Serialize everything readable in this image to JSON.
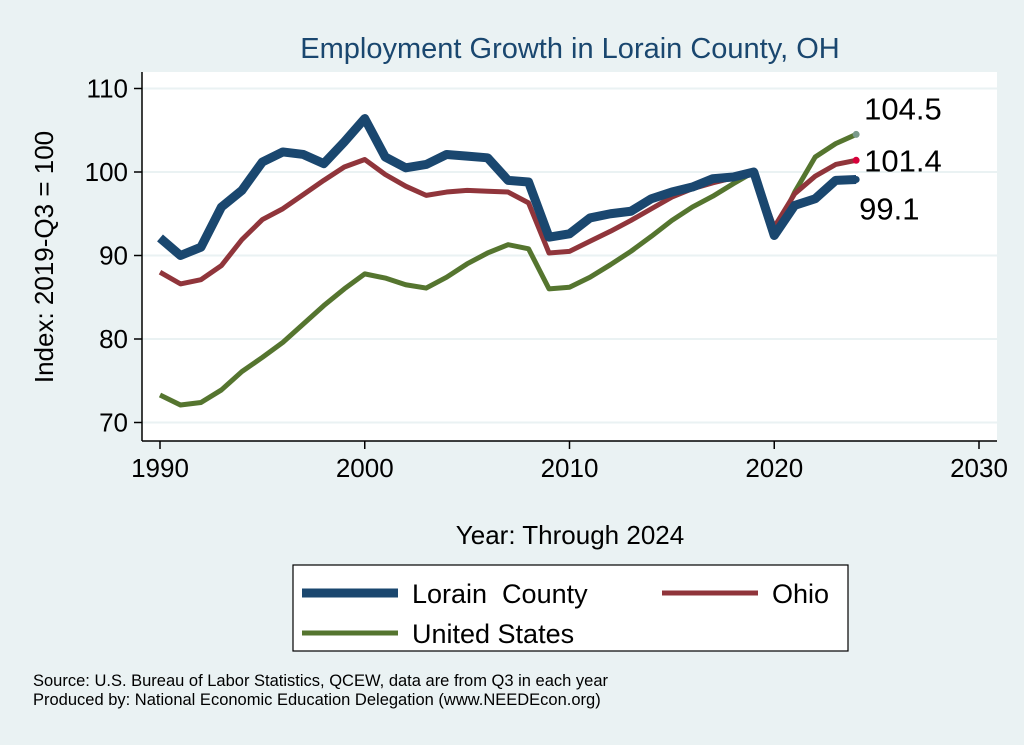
{
  "chart_data": {
    "type": "line",
    "title": "Employment Growth in Lorain County, OH",
    "xlabel": "Year: Through 2024",
    "ylabel": "Index: 2019-Q3 = 100",
    "xlim": [
      1990,
      2030
    ],
    "ylim": [
      70,
      110
    ],
    "xticks": [
      1990,
      2000,
      2010,
      2020,
      2030
    ],
    "yticks": [
      70,
      80,
      90,
      100,
      110
    ],
    "grid": true,
    "legend_position": "bottom",
    "x": [
      1990,
      1991,
      1992,
      1993,
      1994,
      1995,
      1996,
      1997,
      1998,
      1999,
      2000,
      2001,
      2002,
      2003,
      2004,
      2005,
      2006,
      2007,
      2008,
      2009,
      2010,
      2011,
      2012,
      2013,
      2014,
      2015,
      2016,
      2017,
      2018,
      2019,
      2020,
      2021,
      2022,
      2023,
      2024
    ],
    "series": [
      {
        "name": "Lorain  County",
        "color": "#1a476f",
        "values": [
          92.1,
          90,
          91,
          95.8,
          97.8,
          101.2,
          102.4,
          102.1,
          101,
          103.6,
          106.4,
          101.8,
          100.5,
          100.9,
          102.1,
          101.9,
          101.7,
          99,
          98.8,
          92.2,
          92.6,
          94.5,
          95,
          95.3,
          96.8,
          97.6,
          98.2,
          99.2,
          99.4,
          100,
          92.4,
          96,
          96.8,
          99,
          99.1
        ],
        "end_label": "99.1",
        "end_color": "#1a476f"
      },
      {
        "name": "Ohio",
        "color": "#90353b",
        "values": [
          88,
          86.6,
          87.1,
          88.8,
          91.9,
          94.3,
          95.6,
          97.3,
          99,
          100.6,
          101.5,
          99.7,
          98.3,
          97.2,
          97.6,
          97.8,
          97.7,
          97.6,
          96.3,
          90.3,
          90.5,
          91.7,
          92.9,
          94.2,
          95.6,
          97,
          98,
          98.7,
          99.3,
          100,
          93.4,
          97.4,
          99.5,
          100.9,
          101.4
        ],
        "end_label": "101.4",
        "end_color": "#d7003a"
      },
      {
        "name": "United States",
        "color": "#55752f",
        "values": [
          73.3,
          72.1,
          72.4,
          73.9,
          76.1,
          77.8,
          79.6,
          81.8,
          84,
          86,
          87.8,
          87.3,
          86.5,
          86.1,
          87.4,
          89,
          90.3,
          91.3,
          90.8,
          86,
          86.2,
          87.4,
          88.9,
          90.5,
          92.3,
          94.2,
          95.8,
          97.1,
          98.6,
          100,
          92.5,
          97.6,
          101.8,
          103.4,
          104.5
        ],
        "end_label": "104.5",
        "end_color": "#7a9a8a"
      }
    ]
  },
  "notes": {
    "source": "Source: U.S. Bureau of Labor Statistics, QCEW, data are from Q3 in each year",
    "produced": "Produced by: National Economic Education Delegation (www.NEEDEcon.org)"
  }
}
